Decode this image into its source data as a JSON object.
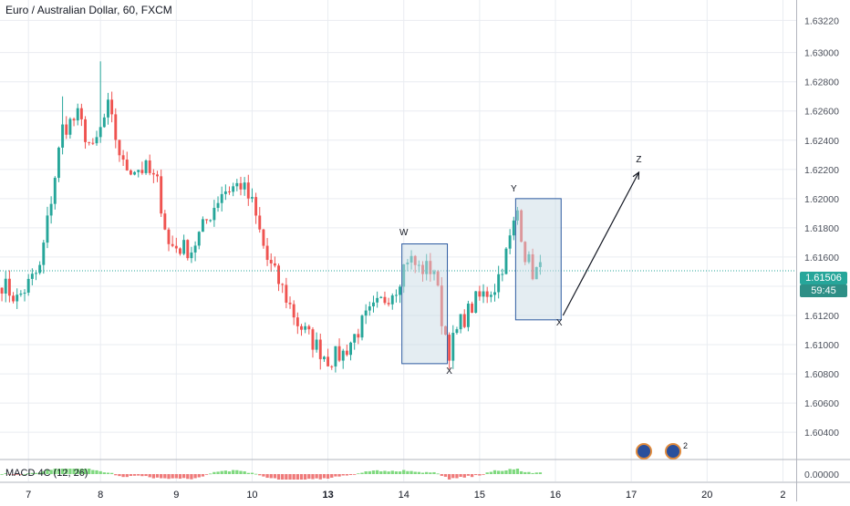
{
  "title": "Euro / Australian Dollar, 60, FXCM",
  "colors": {
    "up": "#26a69a",
    "down": "#ef5350",
    "grid": "#e9ecf1",
    "axis_text": "#4a4f5a",
    "current_price": "#26a69a",
    "box_fill": "#c9dce6",
    "box_stroke": "#2c5aa0"
  },
  "current_price": {
    "value": 1.61506,
    "label": "1.61506",
    "countdown": "59:45"
  },
  "macd": {
    "label": "MACD 4C (12, 26)",
    "price_label": "0.00000"
  },
  "events": {
    "flag_icon": "australia-flag-icon",
    "count": "2"
  },
  "chart_data": {
    "type": "candlestick",
    "title": "Euro / Australian Dollar, 60, FXCM",
    "ylim": [
      1.6022,
      1.6336
    ],
    "y_ticks": [
      1.6322,
      1.63,
      1.628,
      1.626,
      1.624,
      1.622,
      1.62,
      1.618,
      1.616,
      1.614,
      1.612,
      1.61,
      1.608,
      1.606,
      1.604
    ],
    "y_tick_labels": [
      "1.63220",
      "1.63000",
      "1.62800",
      "1.62600",
      "1.62400",
      "1.62200",
      "1.62000",
      "1.61800",
      "1.61600",
      "1.61400",
      "1.61200",
      "1.61000",
      "1.60800",
      "1.60600",
      "1.60400"
    ],
    "x_ticks": [
      "7",
      "8",
      "9",
      "10",
      "13",
      "14",
      "15",
      "16",
      "17",
      "20",
      "2"
    ],
    "x_tick_index": [
      7,
      26,
      46,
      66,
      86,
      106,
      126,
      146,
      166,
      186,
      206
    ],
    "x_tick_bold": [
      false,
      false,
      false,
      false,
      true,
      false,
      false,
      false,
      false,
      false,
      false
    ],
    "bars_total": 210,
    "anchors": [
      [
        0,
        1.6142
      ],
      [
        4,
        1.6131
      ],
      [
        10,
        1.6152
      ],
      [
        16,
        1.6248
      ],
      [
        20,
        1.6256
      ],
      [
        24,
        1.6232
      ],
      [
        28,
        1.6262
      ],
      [
        32,
        1.6222
      ],
      [
        38,
        1.622
      ],
      [
        41,
        1.621
      ],
      [
        44,
        1.6168
      ],
      [
        50,
        1.6165
      ],
      [
        54,
        1.6185
      ],
      [
        58,
        1.6205
      ],
      [
        63,
        1.621
      ],
      [
        66,
        1.6196
      ],
      [
        70,
        1.6158
      ],
      [
        74,
        1.6138
      ],
      [
        78,
        1.6115
      ],
      [
        82,
        1.6102
      ],
      [
        86,
        1.609
      ],
      [
        90,
        1.6094
      ],
      [
        96,
        1.6118
      ],
      [
        104,
        1.614
      ],
      [
        107,
        1.616
      ],
      [
        110,
        1.6152
      ],
      [
        114,
        1.6152
      ],
      [
        116,
        1.6118
      ],
      [
        118,
        1.6096
      ],
      [
        121,
        1.6115
      ],
      [
        125,
        1.613
      ],
      [
        130,
        1.614
      ],
      [
        133,
        1.6162
      ],
      [
        136,
        1.6192
      ],
      [
        138,
        1.6162
      ],
      [
        140,
        1.615
      ],
      [
        142,
        1.6151
      ]
    ],
    "spikes": [
      [
        26,
        1.6294
      ],
      [
        28,
        1.6272
      ],
      [
        16,
        1.627
      ],
      [
        84,
        1.6083
      ]
    ],
    "annotations": [
      {
        "label": "W",
        "bar": 106,
        "y": 1.6175
      },
      {
        "label": "X",
        "bar": 118,
        "y": 1.608
      },
      {
        "label": "Y",
        "bar": 135,
        "y": 1.6205
      },
      {
        "label": "X",
        "bar": 147,
        "y": 1.6113
      },
      {
        "label": "Z",
        "bar": 168,
        "y": 1.6225
      }
    ],
    "boxes": [
      {
        "bar_from": 106,
        "bar_to": 117,
        "y_top": 1.6169,
        "y_bottom": 1.6087
      },
      {
        "bar_from": 136,
        "bar_to": 147,
        "y_top": 1.62,
        "y_bottom": 1.6117
      }
    ],
    "arrow": {
      "from": [
        148,
        1.612
      ],
      "to": [
        168,
        1.6218
      ]
    }
  }
}
